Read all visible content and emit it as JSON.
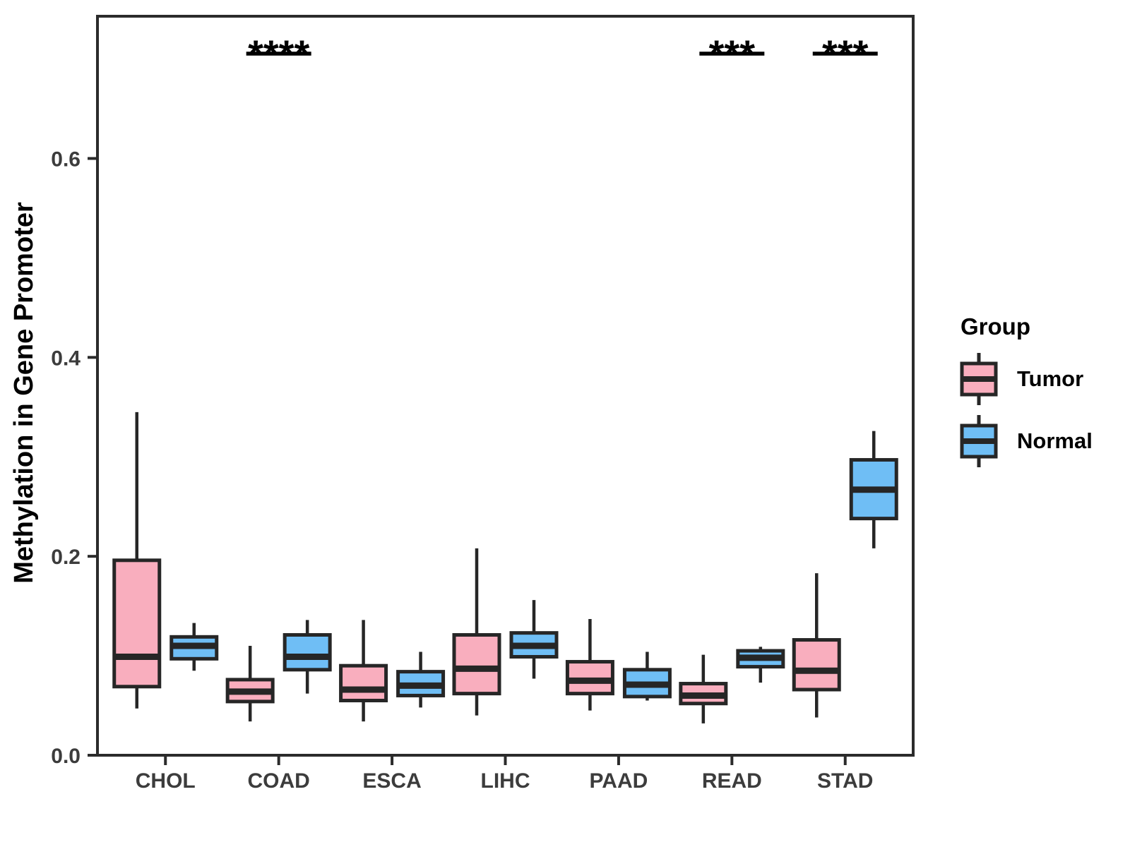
{
  "chart_data": {
    "type": "boxplot",
    "title": "",
    "xlabel": "",
    "ylabel": "Methylation in Gene Promoter",
    "categories": [
      "CHOL",
      "COAD",
      "ESCA",
      "LIHC",
      "PAAD",
      "READ",
      "STAD"
    ],
    "yticks": [
      0.0,
      0.2,
      0.4,
      0.6
    ],
    "ytick_labels": [
      "0.0",
      "0.2",
      "0.4",
      "0.6"
    ],
    "ylim": [
      0.0,
      0.743
    ],
    "grid": false,
    "legend_position": "right",
    "series": [
      {
        "name": "Tumor",
        "color": "#F9AEBE",
        "boxes": [
          {
            "category": "CHOL",
            "low": 0.047,
            "q1": 0.069,
            "median": 0.099,
            "q3": 0.196,
            "high": 0.345
          },
          {
            "category": "COAD",
            "low": 0.034,
            "q1": 0.054,
            "median": 0.064,
            "q3": 0.076,
            "high": 0.11
          },
          {
            "category": "ESCA",
            "low": 0.034,
            "q1": 0.055,
            "median": 0.066,
            "q3": 0.09,
            "high": 0.136
          },
          {
            "category": "LIHC",
            "low": 0.04,
            "q1": 0.062,
            "median": 0.087,
            "q3": 0.121,
            "high": 0.208
          },
          {
            "category": "PAAD",
            "low": 0.045,
            "q1": 0.062,
            "median": 0.075,
            "q3": 0.094,
            "high": 0.137
          },
          {
            "category": "READ",
            "low": 0.032,
            "q1": 0.052,
            "median": 0.06,
            "q3": 0.072,
            "high": 0.101
          },
          {
            "category": "STAD",
            "low": 0.038,
            "q1": 0.066,
            "median": 0.085,
            "q3": 0.116,
            "high": 0.183
          }
        ]
      },
      {
        "name": "Normal",
        "color": "#6FBEF5",
        "boxes": [
          {
            "category": "CHOL",
            "low": 0.085,
            "q1": 0.097,
            "median": 0.11,
            "q3": 0.119,
            "high": 0.133
          },
          {
            "category": "COAD",
            "low": 0.062,
            "q1": 0.086,
            "median": 0.099,
            "q3": 0.121,
            "high": 0.136
          },
          {
            "category": "ESCA",
            "low": 0.048,
            "q1": 0.06,
            "median": 0.07,
            "q3": 0.084,
            "high": 0.104
          },
          {
            "category": "LIHC",
            "low": 0.077,
            "q1": 0.099,
            "median": 0.11,
            "q3": 0.123,
            "high": 0.156
          },
          {
            "category": "PAAD",
            "low": 0.055,
            "q1": 0.059,
            "median": 0.071,
            "q3": 0.086,
            "high": 0.104
          },
          {
            "category": "READ",
            "low": 0.073,
            "q1": 0.089,
            "median": 0.098,
            "q3": 0.105,
            "high": 0.109
          },
          {
            "category": "STAD",
            "low": 0.208,
            "q1": 0.238,
            "median": 0.267,
            "q3": 0.297,
            "high": 0.326
          }
        ]
      }
    ],
    "significance": [
      {
        "category": "COAD",
        "label": "****"
      },
      {
        "category": "READ",
        "label": "***"
      },
      {
        "category": "STAD",
        "label": "***"
      }
    ]
  },
  "legend": {
    "title": "Group",
    "entries": [
      {
        "label": "Tumor",
        "color": "#F9AEBE"
      },
      {
        "label": "Normal",
        "color": "#6FBEF5"
      }
    ]
  },
  "colors": {
    "box_border": "#262626",
    "panel_border": "#2B2B2B",
    "axis_text": "#3C3C3C",
    "axis_title": "#000000",
    "significance": "#000000"
  }
}
